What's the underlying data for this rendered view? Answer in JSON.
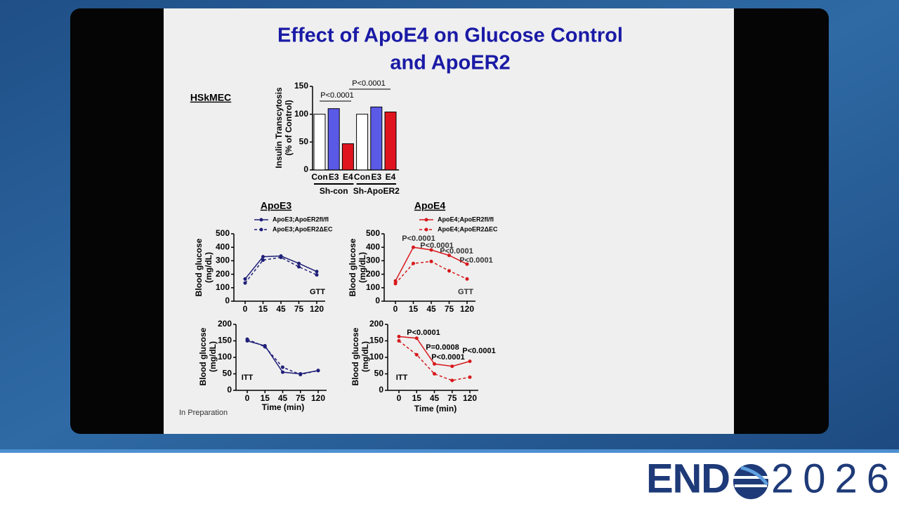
{
  "slide": {
    "title_lines": [
      "Effect of ApoE4 on Glucose Control",
      "and ApoER2"
    ],
    "footnote": "In Preparation"
  },
  "logo": {
    "left": "END",
    "right": "2026"
  },
  "chart_data": [
    {
      "type": "bar",
      "title": "HSkMEC",
      "ylabel_lines": [
        "Insulin Transcytosis",
        "(% of Control)"
      ],
      "categories": [
        "Con",
        "E3",
        "E4",
        "Con",
        "E3",
        "E4"
      ],
      "values": [
        100,
        110,
        47,
        100,
        113,
        104
      ],
      "colors": [
        "#ffffff",
        "#5a5ae6",
        "#e0141e",
        "#ffffff",
        "#5a5ae6",
        "#e0141e"
      ],
      "groups": [
        "Sh-con",
        "Sh-ApoER2"
      ],
      "annotations": [
        "P<0.0001",
        "P<0.0001"
      ],
      "ylim": [
        0,
        150
      ],
      "yticks": [
        0,
        50,
        100,
        150
      ]
    },
    {
      "type": "line",
      "title": "ApoE3",
      "ylabel_lines": [
        "Blood glucose",
        "(mg/dL)"
      ],
      "categories": [
        "0",
        "15",
        "45",
        "75",
        "120"
      ],
      "series": [
        {
          "name": "ApoE3;ApoER2fl/fl",
          "color": "#1f1f78",
          "dash": false,
          "values": [
            165,
            330,
            335,
            280,
            220
          ]
        },
        {
          "name": "ApoE3;ApoER2ΔEC",
          "color": "#1f1f78",
          "dash": true,
          "values": [
            135,
            305,
            325,
            255,
            195
          ]
        }
      ],
      "annotations": [
        "GTT"
      ],
      "ylim": [
        0,
        500
      ],
      "yticks": [
        0,
        100,
        200,
        300,
        400,
        500
      ]
    },
    {
      "type": "line",
      "title": "ApoE4",
      "ylabel_lines": [
        "Blood glucose",
        "(mg/dL)"
      ],
      "categories": [
        "0",
        "15",
        "45",
        "75",
        "120"
      ],
      "series": [
        {
          "name": "ApoE4;ApoER2fl/fl",
          "color": "#d7191c",
          "dash": false,
          "values": [
            150,
            400,
            380,
            340,
            275
          ]
        },
        {
          "name": "ApoE4;ApoER2ΔEC",
          "color": "#d7191c",
          "dash": true,
          "values": [
            130,
            280,
            295,
            225,
            165
          ]
        }
      ],
      "annotations": [
        "P<0.0001",
        "P<0.0001",
        "P<0.0001",
        "P<0.0001",
        "GTT"
      ],
      "ylim": [
        0,
        500
      ],
      "yticks": [
        0,
        100,
        200,
        300,
        400,
        500
      ]
    },
    {
      "type": "line",
      "ylabel_lines": [
        "Blood glucose",
        "(mg/dL)"
      ],
      "xlabel": "Time (min)",
      "categories": [
        "0",
        "15",
        "45",
        "75",
        "120"
      ],
      "series": [
        {
          "color": "#1f1f78",
          "dash": false,
          "values": [
            150,
            135,
            55,
            50,
            60
          ]
        },
        {
          "color": "#1f1f78",
          "dash": true,
          "values": [
            155,
            132,
            70,
            48,
            60
          ]
        }
      ],
      "annotations": [
        "ITT"
      ],
      "ylim": [
        0,
        200
      ],
      "yticks": [
        0,
        50,
        100,
        150,
        200
      ]
    },
    {
      "type": "line",
      "ylabel_lines": [
        "Blood glucose",
        "(mg/dL)"
      ],
      "xlabel": "Time (min)",
      "categories": [
        "0",
        "15",
        "45",
        "75",
        "120"
      ],
      "series": [
        {
          "color": "#d7191c",
          "dash": false,
          "values": [
            163,
            158,
            80,
            73,
            88
          ]
        },
        {
          "color": "#d7191c",
          "dash": true,
          "values": [
            150,
            108,
            50,
            30,
            40
          ]
        }
      ],
      "annotations": [
        "P<0.0001",
        "P=0.0008",
        "P<0.0001",
        "P<0.0001",
        "ITT"
      ],
      "ylim": [
        0,
        200
      ],
      "yticks": [
        0,
        50,
        100,
        150,
        200
      ]
    }
  ]
}
